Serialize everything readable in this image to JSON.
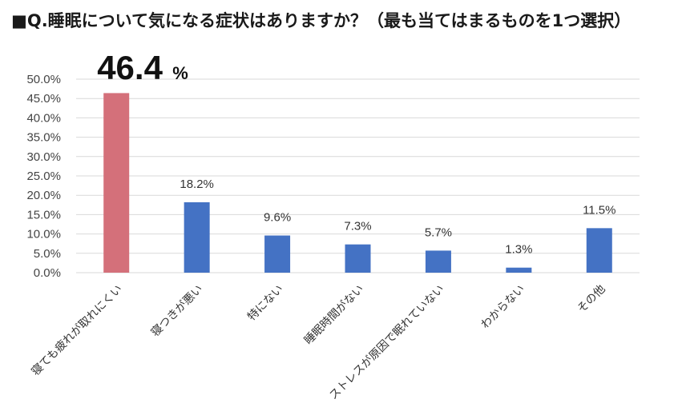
{
  "question": "■Q.睡眠について気になる症状はありますか？（最も当てはまるものを1つ選択）",
  "chart_data": {
    "type": "bar",
    "categories": [
      "寝ても疲れが取れにくい",
      "寝つきが悪い",
      "特にない",
      "睡眠時間がない",
      "ストレスが原因で眠れていない",
      "わからない",
      "その他"
    ],
    "values": [
      46.4,
      18.2,
      9.6,
      7.3,
      5.7,
      1.3,
      11.5
    ],
    "value_labels": [
      "",
      "18.2%",
      "9.6%",
      "7.3%",
      "5.7%",
      "1.3%",
      "11.5%"
    ],
    "highlight": {
      "index": 0,
      "number": "46.4",
      "unit": "%"
    },
    "ylim": [
      0,
      50
    ],
    "yticks": [
      "0.0%",
      "5.0%",
      "10.0%",
      "15.0%",
      "20.0%",
      "25.0%",
      "30.0%",
      "35.0%",
      "40.0%",
      "45.0%",
      "50.0%"
    ],
    "ytick_step": 5,
    "grid": true,
    "colors": {
      "highlight": "#d4707a",
      "default": "#4472c4",
      "grid": "#d9d9d9"
    }
  }
}
